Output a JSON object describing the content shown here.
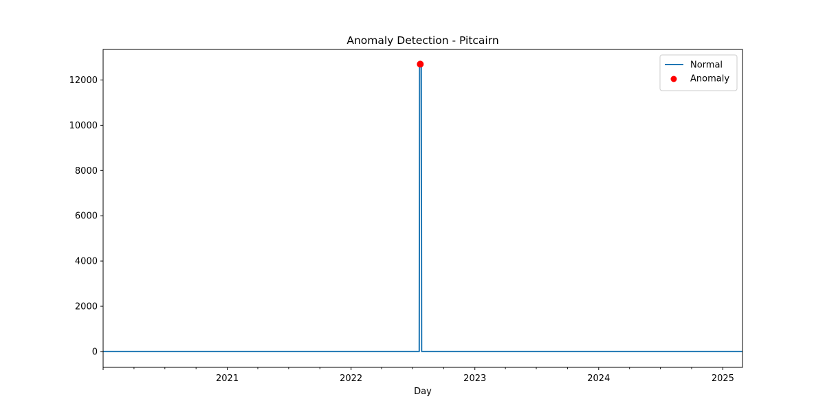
{
  "chart_data": {
    "type": "line",
    "title": "Anomaly Detection - Pitcairn",
    "xlabel": "Day",
    "ylabel": "",
    "x_type": "date",
    "xlim": [
      "2020-01-01",
      "2025-02-28"
    ],
    "ylim": [
      -700,
      13350
    ],
    "x_ticks": [
      {
        "label": "2021",
        "date": "2021-01-01"
      },
      {
        "label": "2022",
        "date": "2022-01-01"
      },
      {
        "label": "2023",
        "date": "2023-01-01"
      },
      {
        "label": "2024",
        "date": "2024-01-01"
      },
      {
        "label": "2025",
        "date": "2025-01-01"
      }
    ],
    "y_ticks": [
      0,
      2000,
      4000,
      6000,
      8000,
      10000,
      12000
    ],
    "grid": false,
    "legend_position": "top-right",
    "series": [
      {
        "name": "Normal",
        "kind": "line",
        "color": "#1f77b4",
        "points": [
          [
            "2020-01-01",
            0
          ],
          [
            "2022-07-21",
            0
          ],
          [
            "2022-07-22",
            12700
          ],
          [
            "2022-07-27",
            12700
          ],
          [
            "2022-07-28",
            0
          ],
          [
            "2025-02-28",
            0
          ]
        ]
      },
      {
        "name": "Anomaly",
        "kind": "scatter",
        "color": "#ff0000",
        "points": [
          [
            "2022-07-24",
            12700
          ]
        ]
      }
    ]
  }
}
